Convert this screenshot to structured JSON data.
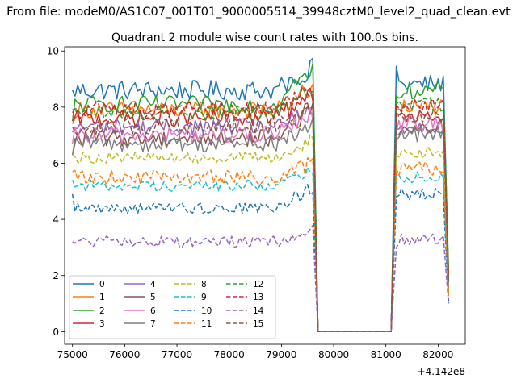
{
  "chart_data": {
    "type": "line",
    "suptitle": "From file: modeM0/AS1C07_001T01_9000005514_39948cztM0_level2_quad_clean.evt",
    "title": "Quadrant 2 module wise count rates with 100.0s bins.",
    "xlabel": "",
    "ylabel": "",
    "x_offset_label": "+4.142e8",
    "xlim": [
      74850,
      82520
    ],
    "ylim": [
      -0.45,
      10.15
    ],
    "x_ticks": [
      75000,
      76000,
      77000,
      78000,
      79000,
      80000,
      81000,
      82000
    ],
    "x_tick_labels": [
      "75000",
      "76000",
      "77000",
      "78000",
      "79000",
      "80000",
      "81000",
      "82000"
    ],
    "y_ticks": [
      0,
      2,
      4,
      6,
      8,
      10
    ],
    "y_tick_labels": [
      "0",
      "2",
      "4",
      "6",
      "8",
      "10"
    ],
    "grid": false,
    "legend": {
      "location": "lower-left",
      "columns": 4
    },
    "segments": [
      {
        "start": 75000,
        "end": 79600
      },
      {
        "start": 81200,
        "end": 82100
      }
    ],
    "gap": {
      "drop_to": 79700,
      "flat_end": 81100
    },
    "end_x": 82200,
    "series": [
      {
        "name": "0",
        "color": "#1f77b4",
        "dash": "solid",
        "mean": 8.6,
        "noise": 0.35,
        "peak": 9.6,
        "start": 8.6,
        "seg2_start": 9.45,
        "seg2_mean": 8.8,
        "end_value": 2.0
      },
      {
        "name": "1",
        "color": "#ff7f0e",
        "dash": "solid",
        "mean": 7.9,
        "noise": 0.3,
        "peak": 8.8,
        "start": 7.4,
        "seg2_start": 7.9,
        "seg2_mean": 8.0,
        "end_value": 1.8
      },
      {
        "name": "2",
        "color": "#2ca02c",
        "dash": "solid",
        "mean": 8.1,
        "noise": 0.3,
        "peak": 9.65,
        "start": 7.5,
        "seg2_start": 8.4,
        "seg2_mean": 8.6,
        "end_value": 2.2
      },
      {
        "name": "3",
        "color": "#d62728",
        "dash": "solid",
        "mean": 7.6,
        "noise": 0.3,
        "peak": 8.7,
        "start": 7.5,
        "seg2_start": 7.8,
        "seg2_mean": 7.6,
        "end_value": 1.8
      },
      {
        "name": "4",
        "color": "#9467bd",
        "dash": "solid",
        "mean": 7.3,
        "noise": 0.3,
        "peak": 8.0,
        "start": 7.1,
        "seg2_start": 7.2,
        "seg2_mean": 7.3,
        "end_value": 1.7
      },
      {
        "name": "5",
        "color": "#8c564b",
        "dash": "solid",
        "mean": 6.9,
        "noise": 0.3,
        "peak": 8.2,
        "start": 6.3,
        "seg2_start": 7.0,
        "seg2_mean": 7.3,
        "end_value": 1.6
      },
      {
        "name": "6",
        "color": "#e377c2",
        "dash": "solid",
        "mean": 7.0,
        "noise": 0.3,
        "peak": 8.0,
        "start": 6.7,
        "seg2_start": 7.1,
        "seg2_mean": 7.4,
        "end_value": 1.6
      },
      {
        "name": "7",
        "color": "#7f7f7f",
        "dash": "solid",
        "mean": 6.7,
        "noise": 0.3,
        "peak": 7.5,
        "start": 6.3,
        "seg2_start": 6.8,
        "seg2_mean": 7.0,
        "end_value": 1.5
      },
      {
        "name": "8",
        "color": "#bcbd22",
        "dash": "dashed",
        "mean": 6.2,
        "noise": 0.2,
        "peak": 6.9,
        "start": 6.3,
        "seg2_start": 6.3,
        "seg2_mean": 6.4,
        "end_value": 1.4
      },
      {
        "name": "9",
        "color": "#17becf",
        "dash": "dashed",
        "mean": 5.2,
        "noise": 0.2,
        "peak": 5.9,
        "start": 5.4,
        "seg2_start": 5.6,
        "seg2_mean": 5.5,
        "end_value": 1.3
      },
      {
        "name": "10",
        "color": "#1f77b4",
        "dash": "dashed",
        "mean": 4.4,
        "noise": 0.2,
        "peak": 5.3,
        "start": 4.9,
        "seg2_start": 4.8,
        "seg2_mean": 4.9,
        "end_value": 1.1
      },
      {
        "name": "11",
        "color": "#ff7f0e",
        "dash": "dashed",
        "mean": 5.5,
        "noise": 0.25,
        "peak": 6.1,
        "start": 5.7,
        "seg2_start": 5.8,
        "seg2_mean": 5.8,
        "end_value": 1.3
      },
      {
        "name": "12",
        "color": "#2ca02c",
        "dash": "dashed",
        "mean": 7.8,
        "noise": 0.25,
        "peak": 8.9,
        "start": 7.9,
        "seg2_start": 8.1,
        "seg2_mean": 8.1,
        "end_value": 1.9
      },
      {
        "name": "13",
        "color": "#d62728",
        "dash": "dashed",
        "mean": 7.9,
        "noise": 0.3,
        "peak": 8.9,
        "start": 7.8,
        "seg2_start": 8.1,
        "seg2_mean": 8.0,
        "end_value": 1.9
      },
      {
        "name": "14",
        "color": "#9467bd",
        "dash": "dashed",
        "mean": 3.2,
        "noise": 0.2,
        "peak": 3.7,
        "start": 3.2,
        "seg2_start": 3.0,
        "seg2_mean": 3.3,
        "end_value": 1.0
      },
      {
        "name": "15",
        "color": "#8c564b",
        "dash": "dashed",
        "mean": 7.3,
        "noise": 0.3,
        "peak": 8.3,
        "start": 7.3,
        "seg2_start": 7.5,
        "seg2_mean": 7.6,
        "end_value": 1.7
      }
    ]
  }
}
